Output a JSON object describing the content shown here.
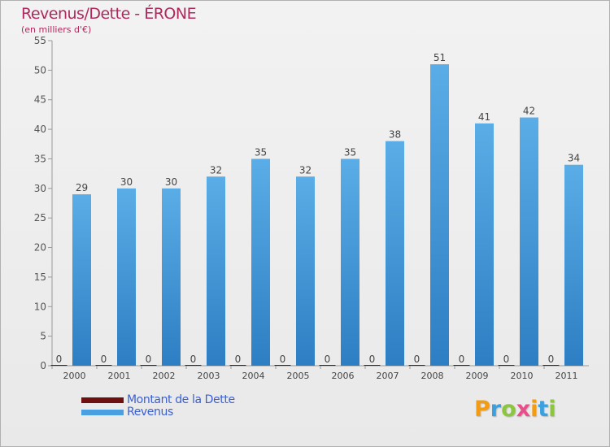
{
  "title": "Revenus/Dette - ÉRONE",
  "subtitle": "(en milliers d'€)",
  "colors": {
    "revenus": "#5aade6",
    "revenus_dark": "#2d7ec3",
    "dette": "#6e1010",
    "title": "#b0285e",
    "legend_text": "#3a5fd0"
  },
  "legend": [
    {
      "label": "Montant de la Dette",
      "color": "#6e1010"
    },
    {
      "label": "Revenus",
      "color": "#4a9fe0"
    }
  ],
  "logo": {
    "letters": [
      "P",
      "r",
      "o",
      "x",
      "i",
      "t",
      "i"
    ]
  },
  "chart_data": {
    "type": "bar",
    "title": "Revenus/Dette - ÉRONE",
    "ylabel": "(en milliers d'€)",
    "xlabel": "",
    "ylim": [
      0,
      55
    ],
    "yticks": [
      0,
      5,
      10,
      15,
      20,
      25,
      30,
      35,
      40,
      45,
      50,
      55
    ],
    "grid": false,
    "legend_position": "bottom-left",
    "categories": [
      "2000",
      "2001",
      "2002",
      "2003",
      "2004",
      "2005",
      "2006",
      "2007",
      "2008",
      "2009",
      "2010",
      "2011"
    ],
    "series": [
      {
        "name": "Montant de la Dette",
        "values": [
          0,
          0,
          0,
          0,
          0,
          0,
          0,
          0,
          0,
          0,
          0,
          0
        ]
      },
      {
        "name": "Revenus",
        "values": [
          29,
          30,
          30,
          32,
          35,
          32,
          35,
          38,
          51,
          41,
          42,
          34
        ]
      }
    ]
  }
}
